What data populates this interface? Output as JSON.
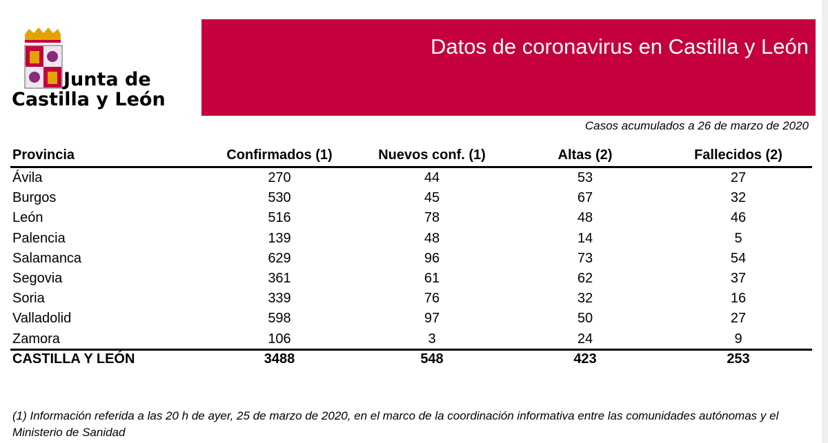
{
  "header": {
    "logo_line1": "Junta de",
    "logo_line2": "Castilla y León",
    "title": "Datos de coronavirus en Castilla y León"
  },
  "subtitle": "Casos acumulados a 26 de marzo de 2020",
  "table": {
    "columns": [
      "Provincia",
      "Confirmados (1)",
      "Nuevos conf. (1)",
      "Altas (2)",
      "Fallecidos (2)"
    ],
    "rows": [
      [
        "Ávila",
        270,
        44,
        53,
        27
      ],
      [
        "Burgos",
        530,
        45,
        67,
        32
      ],
      [
        "León",
        516,
        78,
        48,
        46
      ],
      [
        "Palencia",
        139,
        48,
        14,
        5
      ],
      [
        "Salamanca",
        629,
        96,
        73,
        54
      ],
      [
        "Segovia",
        361,
        61,
        62,
        37
      ],
      [
        "Soria",
        339,
        76,
        32,
        16
      ],
      [
        "Valladolid",
        598,
        97,
        50,
        27
      ],
      [
        "Zamora",
        106,
        3,
        24,
        9
      ]
    ],
    "total": [
      "CASTILLA Y LEÓN",
      3488,
      548,
      423,
      253
    ]
  },
  "footnote": "(1) Información referida a las 20 h de ayer, 25 de marzo de 2020, en el marco de la coordinación informativa entre las comunidades autónomas y el Ministerio de Sanidad"
}
